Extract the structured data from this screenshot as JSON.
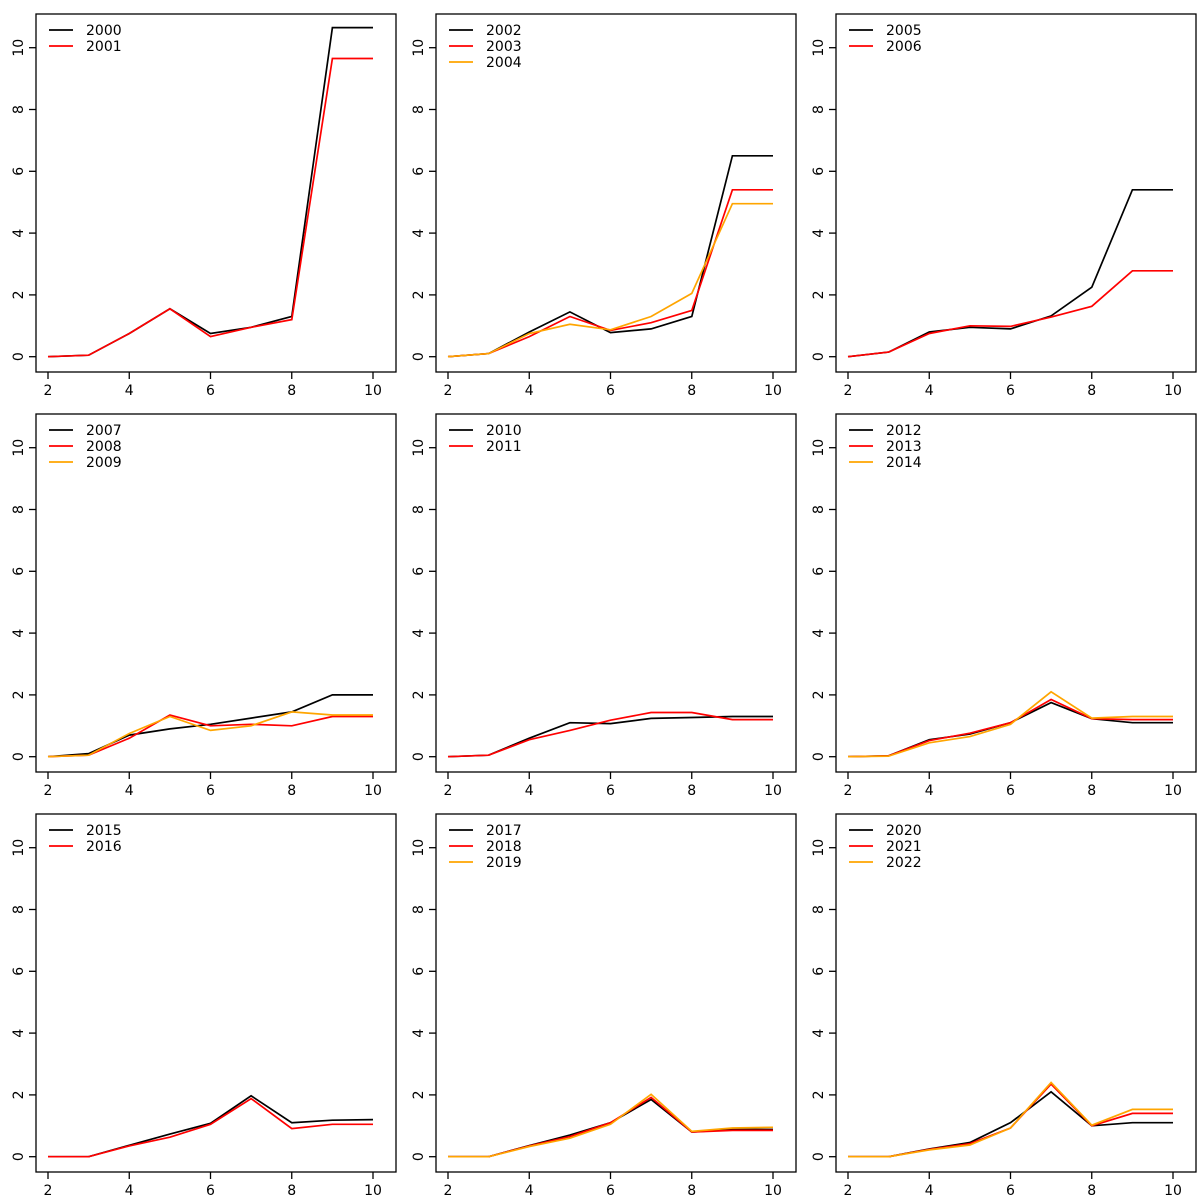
{
  "figure": {
    "background": "#ffffff",
    "axis_color": "#000000",
    "series_palette": [
      "#000000",
      "#ff0000",
      "#ffa500"
    ],
    "layout": "3x3-grid-of-line-charts"
  },
  "chart_data": [
    {
      "type": "line",
      "x": [
        2,
        3,
        4,
        5,
        6,
        7,
        8,
        9,
        10
      ],
      "x_ticks": [
        2,
        4,
        6,
        8,
        10
      ],
      "y_ticks": [
        0,
        2,
        4,
        6,
        8,
        10
      ],
      "xlim": [
        2,
        10
      ],
      "ylim": [
        0,
        11
      ],
      "grid": false,
      "legend_position": "top-left",
      "series": [
        {
          "name": "2000",
          "color": "#000000",
          "values": [
            0,
            0.05,
            0.75,
            1.55,
            0.75,
            0.95,
            1.3,
            10.65,
            10.65
          ]
        },
        {
          "name": "2001",
          "color": "#ff0000",
          "values": [
            0,
            0.05,
            0.75,
            1.55,
            0.65,
            0.95,
            1.2,
            9.65,
            9.65
          ]
        }
      ]
    },
    {
      "type": "line",
      "x": [
        2,
        3,
        4,
        5,
        6,
        7,
        8,
        9,
        10
      ],
      "x_ticks": [
        2,
        4,
        6,
        8,
        10
      ],
      "y_ticks": [
        0,
        2,
        4,
        6,
        8,
        10
      ],
      "xlim": [
        2,
        10
      ],
      "ylim": [
        0,
        11
      ],
      "grid": false,
      "legend_position": "top-left",
      "series": [
        {
          "name": "2002",
          "color": "#000000",
          "values": [
            0,
            0.1,
            0.8,
            1.45,
            0.78,
            0.9,
            1.3,
            6.5,
            6.5
          ]
        },
        {
          "name": "2003",
          "color": "#ff0000",
          "values": [
            0,
            0.1,
            0.65,
            1.3,
            0.85,
            1.1,
            1.5,
            5.4,
            5.4
          ]
        },
        {
          "name": "2004",
          "color": "#ffa500",
          "values": [
            0,
            0.1,
            0.75,
            1.05,
            0.87,
            1.3,
            2.05,
            4.95,
            4.95
          ]
        }
      ]
    },
    {
      "type": "line",
      "x": [
        2,
        3,
        4,
        5,
        6,
        7,
        8,
        9,
        10
      ],
      "x_ticks": [
        2,
        4,
        6,
        8,
        10
      ],
      "y_ticks": [
        0,
        2,
        4,
        6,
        8,
        10
      ],
      "xlim": [
        2,
        10
      ],
      "ylim": [
        0,
        11
      ],
      "grid": false,
      "legend_position": "top-left",
      "series": [
        {
          "name": "2005",
          "color": "#000000",
          "values": [
            0,
            0.15,
            0.8,
            0.95,
            0.9,
            1.32,
            2.25,
            5.4,
            5.4
          ]
        },
        {
          "name": "2006",
          "color": "#ff0000",
          "values": [
            0,
            0.15,
            0.75,
            1.0,
            0.98,
            1.28,
            1.63,
            2.78,
            2.78
          ]
        }
      ]
    },
    {
      "type": "line",
      "x": [
        2,
        3,
        4,
        5,
        6,
        7,
        8,
        9,
        10
      ],
      "x_ticks": [
        2,
        4,
        6,
        8,
        10
      ],
      "y_ticks": [
        0,
        2,
        4,
        6,
        8,
        10
      ],
      "xlim": [
        2,
        10
      ],
      "ylim": [
        0,
        11
      ],
      "grid": false,
      "legend_position": "top-left",
      "series": [
        {
          "name": "2007",
          "color": "#000000",
          "values": [
            0,
            0.1,
            0.7,
            0.9,
            1.05,
            1.25,
            1.45,
            2.0,
            2.0
          ]
        },
        {
          "name": "2008",
          "color": "#ff0000",
          "values": [
            0,
            0.05,
            0.6,
            1.35,
            1.0,
            1.05,
            1.0,
            1.3,
            1.3
          ]
        },
        {
          "name": "2009",
          "color": "#ffa500",
          "values": [
            0,
            0.05,
            0.75,
            1.3,
            0.85,
            1.0,
            1.45,
            1.35,
            1.35
          ]
        }
      ]
    },
    {
      "type": "line",
      "x": [
        2,
        3,
        4,
        5,
        6,
        7,
        8,
        9,
        10
      ],
      "x_ticks": [
        2,
        4,
        6,
        8,
        10
      ],
      "y_ticks": [
        0,
        2,
        4,
        6,
        8,
        10
      ],
      "xlim": [
        2,
        10
      ],
      "ylim": [
        0,
        11
      ],
      "grid": false,
      "legend_position": "top-left",
      "series": [
        {
          "name": "2010",
          "color": "#000000",
          "values": [
            0,
            0.05,
            0.6,
            1.1,
            1.07,
            1.24,
            1.27,
            1.3,
            1.3
          ]
        },
        {
          "name": "2011",
          "color": "#ff0000",
          "values": [
            0,
            0.05,
            0.55,
            0.85,
            1.18,
            1.43,
            1.43,
            1.2,
            1.2
          ]
        }
      ]
    },
    {
      "type": "line",
      "x": [
        2,
        3,
        4,
        5,
        6,
        7,
        8,
        9,
        10
      ],
      "x_ticks": [
        2,
        4,
        6,
        8,
        10
      ],
      "y_ticks": [
        0,
        2,
        4,
        6,
        8,
        10
      ],
      "xlim": [
        2,
        10
      ],
      "ylim": [
        0,
        11
      ],
      "grid": false,
      "legend_position": "top-left",
      "series": [
        {
          "name": "2012",
          "color": "#000000",
          "values": [
            0,
            0.03,
            0.55,
            0.73,
            1.1,
            1.75,
            1.23,
            1.1,
            1.1
          ]
        },
        {
          "name": "2013",
          "color": "#ff0000",
          "values": [
            0,
            0.03,
            0.52,
            0.76,
            1.1,
            1.85,
            1.23,
            1.2,
            1.2
          ]
        },
        {
          "name": "2014",
          "color": "#ffa500",
          "values": [
            0,
            0.02,
            0.45,
            0.65,
            1.05,
            2.1,
            1.25,
            1.3,
            1.3
          ]
        }
      ]
    },
    {
      "type": "line",
      "x": [
        2,
        3,
        4,
        5,
        6,
        7,
        8,
        9,
        10
      ],
      "x_ticks": [
        2,
        4,
        6,
        8,
        10
      ],
      "y_ticks": [
        0,
        2,
        4,
        6,
        8,
        10
      ],
      "xlim": [
        2,
        10
      ],
      "ylim": [
        0,
        11
      ],
      "grid": false,
      "legend_position": "top-left",
      "series": [
        {
          "name": "2015",
          "color": "#000000",
          "values": [
            0,
            0,
            0.37,
            0.73,
            1.08,
            1.97,
            1.1,
            1.18,
            1.2
          ]
        },
        {
          "name": "2016",
          "color": "#ff0000",
          "values": [
            0,
            0,
            0.35,
            0.63,
            1.05,
            1.88,
            0.91,
            1.05,
            1.05
          ]
        }
      ]
    },
    {
      "type": "line",
      "x": [
        2,
        3,
        4,
        5,
        6,
        7,
        8,
        9,
        10
      ],
      "x_ticks": [
        2,
        4,
        6,
        8,
        10
      ],
      "y_ticks": [
        0,
        2,
        4,
        6,
        8,
        10
      ],
      "xlim": [
        2,
        10
      ],
      "ylim": [
        0,
        11
      ],
      "grid": false,
      "legend_position": "top-left",
      "series": [
        {
          "name": "2017",
          "color": "#000000",
          "values": [
            0,
            0,
            0.36,
            0.7,
            1.1,
            1.85,
            0.8,
            0.88,
            0.88
          ]
        },
        {
          "name": "2018",
          "color": "#ff0000",
          "values": [
            0,
            0,
            0.35,
            0.65,
            1.1,
            1.92,
            0.8,
            0.85,
            0.85
          ]
        },
        {
          "name": "2019",
          "color": "#ffa500",
          "values": [
            0,
            0,
            0.33,
            0.6,
            1.05,
            2.02,
            0.82,
            0.93,
            0.95
          ]
        }
      ]
    },
    {
      "type": "line",
      "x": [
        2,
        3,
        4,
        5,
        6,
        7,
        8,
        9,
        10
      ],
      "x_ticks": [
        2,
        4,
        6,
        8,
        10
      ],
      "y_ticks": [
        0,
        2,
        4,
        6,
        8,
        10
      ],
      "xlim": [
        2,
        10
      ],
      "ylim": [
        0,
        11
      ],
      "grid": false,
      "legend_position": "top-left",
      "series": [
        {
          "name": "2020",
          "color": "#000000",
          "values": [
            0,
            0,
            0.25,
            0.46,
            1.1,
            2.1,
            1.0,
            1.1,
            1.1
          ]
        },
        {
          "name": "2021",
          "color": "#ff0000",
          "values": [
            0,
            0,
            0.24,
            0.42,
            0.93,
            2.35,
            1.0,
            1.4,
            1.4
          ]
        },
        {
          "name": "2022",
          "color": "#ffa500",
          "values": [
            0,
            0,
            0.22,
            0.38,
            0.93,
            2.4,
            1.02,
            1.53,
            1.53
          ]
        }
      ]
    }
  ]
}
